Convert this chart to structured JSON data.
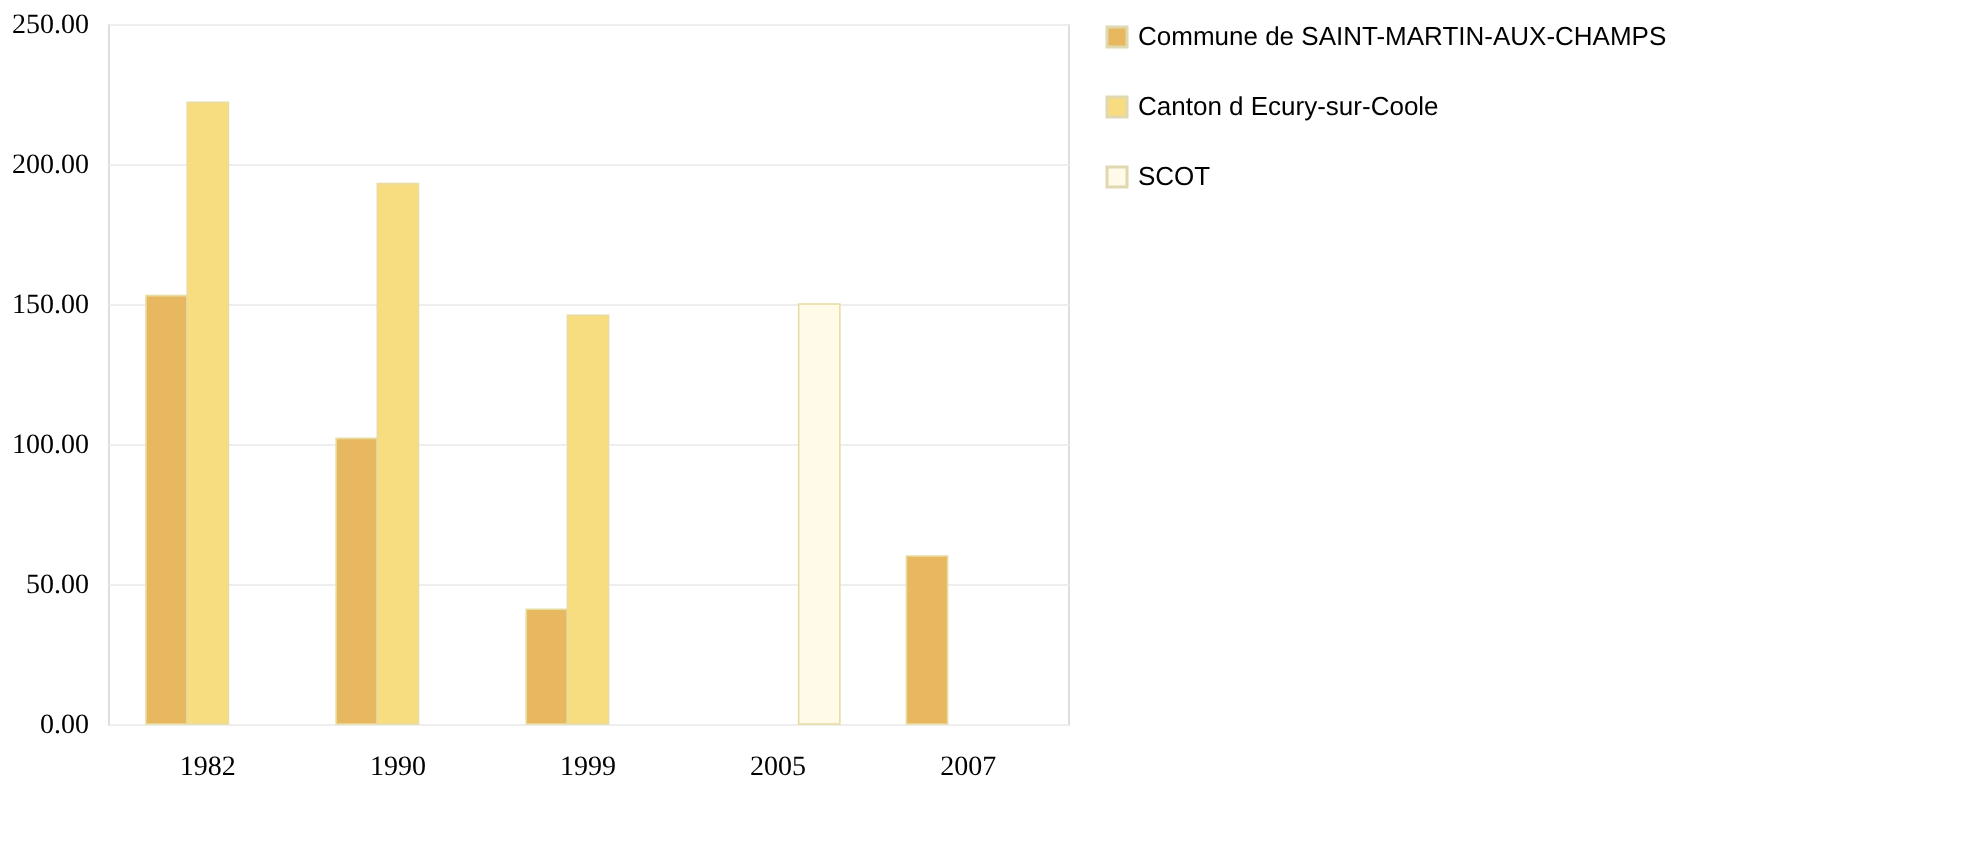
{
  "chart_data": {
    "type": "bar",
    "categories": [
      "1982",
      "1990",
      "1999",
      "2005",
      "2007"
    ],
    "series": [
      {
        "name": "Commune de SAINT-MARTIN-AUX-CHAMPS",
        "color": "#e8b860",
        "values": [
          153,
          102,
          41,
          null,
          60
        ]
      },
      {
        "name": "Canton d Ecury-sur-Coole",
        "color": "#f8dc80",
        "values": [
          222,
          193,
          146,
          null,
          null
        ]
      },
      {
        "name": "SCOT",
        "color": "#fffbe8",
        "values": [
          null,
          null,
          null,
          150,
          null
        ]
      }
    ],
    "ylim": [
      0,
      250
    ],
    "yticks": [
      {
        "value": 0,
        "label": "0.00"
      },
      {
        "value": 50,
        "label": "50.00"
      },
      {
        "value": 100,
        "label": "100.00"
      },
      {
        "value": 150,
        "label": "150.00"
      },
      {
        "value": 200,
        "label": "200.00"
      },
      {
        "value": 250,
        "label": "250.00"
      }
    ],
    "grid": "y",
    "legend": "right"
  }
}
